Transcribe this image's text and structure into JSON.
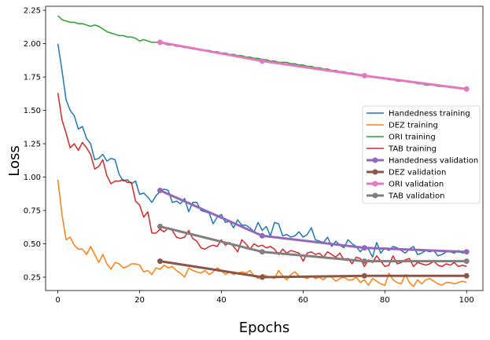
{
  "chart_data": {
    "type": "line",
    "title": "",
    "xlabel": "Epochs",
    "ylabel": "Loss",
    "xlim": [
      -3,
      104
    ],
    "ylim": [
      0.15,
      2.28
    ],
    "xticks": [
      0,
      20,
      40,
      60,
      80,
      100
    ],
    "yticks": [
      0.25,
      0.5,
      0.75,
      1.0,
      1.25,
      1.5,
      1.75,
      2.0,
      2.25
    ],
    "xtick_labels": [
      "0",
      "20",
      "40",
      "60",
      "80",
      "100"
    ],
    "ytick_labels": [
      "0.25",
      "0.50",
      "0.75",
      "1.00",
      "1.25",
      "1.50",
      "1.75",
      "2.00",
      "2.25"
    ],
    "grid": false,
    "legend_position": "center-right",
    "series": [
      {
        "name": "Handedness training",
        "color": "#1f77b4",
        "style": "line",
        "x": [
          0,
          1,
          2,
          3,
          4,
          5,
          6,
          7,
          8,
          9,
          10,
          11,
          12,
          13,
          14,
          15,
          16,
          17,
          18,
          19,
          20,
          21,
          22,
          23,
          24,
          25,
          26,
          27,
          28,
          29,
          30,
          31,
          32,
          33,
          34,
          35,
          36,
          37,
          38,
          39,
          40,
          41,
          42,
          43,
          44,
          45,
          46,
          47,
          48,
          49,
          50,
          51,
          52,
          53,
          54,
          55,
          56,
          57,
          58,
          59,
          60,
          61,
          62,
          63,
          64,
          65,
          66,
          67,
          68,
          69,
          70,
          71,
          72,
          73,
          74,
          75,
          76,
          77,
          78,
          79,
          80,
          81,
          82,
          83,
          84,
          85,
          86,
          87,
          88,
          89,
          90,
          91,
          92,
          93,
          94,
          95,
          96,
          97,
          98,
          99,
          100
        ],
        "y": [
          2.0,
          1.8,
          1.58,
          1.5,
          1.46,
          1.36,
          1.38,
          1.29,
          1.25,
          1.13,
          1.14,
          1.17,
          1.12,
          1.14,
          1.13,
          1.02,
          0.97,
          0.98,
          0.95,
          0.97,
          0.87,
          0.88,
          0.85,
          0.81,
          0.86,
          0.89,
          0.91,
          0.9,
          0.81,
          0.82,
          0.8,
          0.84,
          0.74,
          0.81,
          0.81,
          0.75,
          0.74,
          0.73,
          0.65,
          0.7,
          0.72,
          0.66,
          0.67,
          0.62,
          0.68,
          0.64,
          0.64,
          0.62,
          0.59,
          0.66,
          0.6,
          0.63,
          0.56,
          0.66,
          0.65,
          0.56,
          0.57,
          0.55,
          0.56,
          0.59,
          0.55,
          0.57,
          0.62,
          0.53,
          0.52,
          0.51,
          0.55,
          0.48,
          0.52,
          0.49,
          0.47,
          0.53,
          0.5,
          0.48,
          0.44,
          0.48,
          0.46,
          0.4,
          0.51,
          0.43,
          0.47,
          0.45,
          0.48,
          0.47,
          0.45,
          0.43,
          0.46,
          0.48,
          0.42,
          0.43,
          0.45,
          0.44,
          0.45,
          0.41,
          0.42,
          0.44,
          0.44,
          0.43,
          0.45,
          0.43,
          0.44
        ]
      },
      {
        "name": "DEZ training",
        "color": "#ff7f0e",
        "style": "line",
        "x": [
          0,
          1,
          2,
          3,
          4,
          5,
          6,
          7,
          8,
          9,
          10,
          11,
          12,
          13,
          14,
          15,
          16,
          17,
          18,
          19,
          20,
          21,
          22,
          23,
          24,
          25,
          26,
          27,
          28,
          29,
          30,
          31,
          32,
          33,
          34,
          35,
          36,
          37,
          38,
          39,
          40,
          41,
          42,
          43,
          44,
          45,
          46,
          47,
          48,
          49,
          50,
          51,
          52,
          53,
          54,
          55,
          56,
          57,
          58,
          59,
          60,
          61,
          62,
          63,
          64,
          65,
          66,
          67,
          68,
          69,
          70,
          71,
          72,
          73,
          74,
          75,
          76,
          77,
          78,
          79,
          80,
          81,
          82,
          83,
          84,
          85,
          86,
          87,
          88,
          89,
          90,
          91,
          92,
          93,
          94,
          95,
          96,
          97,
          98,
          99,
          100
        ],
        "y": [
          0.98,
          0.72,
          0.53,
          0.55,
          0.49,
          0.46,
          0.46,
          0.42,
          0.48,
          0.42,
          0.36,
          0.42,
          0.35,
          0.31,
          0.36,
          0.35,
          0.32,
          0.33,
          0.35,
          0.35,
          0.34,
          0.29,
          0.3,
          0.27,
          0.32,
          0.31,
          0.34,
          0.32,
          0.33,
          0.3,
          0.28,
          0.25,
          0.32,
          0.3,
          0.29,
          0.28,
          0.3,
          0.27,
          0.29,
          0.32,
          0.3,
          0.27,
          0.29,
          0.27,
          0.28,
          0.29,
          0.28,
          0.3,
          0.26,
          0.24,
          0.27,
          0.26,
          0.25,
          0.24,
          0.3,
          0.26,
          0.23,
          0.27,
          0.29,
          0.26,
          0.25,
          0.24,
          0.26,
          0.24,
          0.25,
          0.23,
          0.26,
          0.25,
          0.22,
          0.24,
          0.25,
          0.23,
          0.23,
          0.25,
          0.21,
          0.23,
          0.19,
          0.24,
          0.22,
          0.2,
          0.19,
          0.28,
          0.23,
          0.21,
          0.2,
          0.27,
          0.21,
          0.18,
          0.23,
          0.2,
          0.23,
          0.24,
          0.22,
          0.2,
          0.19,
          0.21,
          0.21,
          0.2,
          0.21,
          0.22,
          0.21
        ]
      },
      {
        "name": "ORI training",
        "color": "#2ca02c",
        "style": "line",
        "x": [
          0,
          1,
          2,
          3,
          4,
          5,
          6,
          7,
          8,
          9,
          10,
          11,
          12,
          13,
          14,
          15,
          16,
          17,
          18,
          19,
          20,
          21,
          22,
          23,
          24,
          25,
          26,
          27,
          28,
          29,
          30,
          31,
          32,
          33,
          34,
          35,
          36,
          37,
          38,
          39,
          40,
          41,
          42,
          43,
          44,
          45,
          46,
          47,
          48,
          49,
          50,
          51,
          52,
          53,
          54,
          55,
          56,
          57,
          58,
          59,
          60,
          61,
          62,
          63,
          64,
          65,
          66,
          67,
          68,
          69,
          70,
          71,
          72,
          73,
          74,
          75,
          76,
          77,
          78,
          79,
          80,
          81,
          82,
          83,
          84,
          85,
          86,
          87,
          88,
          89,
          90,
          91,
          92,
          93,
          94,
          95,
          96,
          97,
          98,
          99,
          100
        ],
        "y": [
          2.21,
          2.18,
          2.17,
          2.16,
          2.16,
          2.15,
          2.15,
          2.14,
          2.13,
          2.14,
          2.13,
          2.11,
          2.09,
          2.08,
          2.07,
          2.06,
          2.06,
          2.05,
          2.05,
          2.04,
          2.02,
          2.03,
          2.02,
          2.01,
          2.01,
          2.01,
          2.0,
          1.99,
          1.99,
          1.98,
          1.98,
          1.97,
          1.97,
          1.96,
          1.96,
          1.95,
          1.95,
          1.95,
          1.94,
          1.94,
          1.93,
          1.93,
          1.92,
          1.92,
          1.91,
          1.91,
          1.9,
          1.9,
          1.89,
          1.89,
          1.88,
          1.88,
          1.87,
          1.87,
          1.86,
          1.86,
          1.86,
          1.85,
          1.85,
          1.84,
          1.84,
          1.83,
          1.83,
          1.82,
          1.82,
          1.81,
          1.81,
          1.8,
          1.8,
          1.79,
          1.79,
          1.78,
          1.78,
          1.77,
          1.77,
          1.76,
          1.76,
          1.75,
          1.75,
          1.74,
          1.74,
          1.73,
          1.73,
          1.72,
          1.72,
          1.72,
          1.71,
          1.71,
          1.7,
          1.7,
          1.69,
          1.69,
          1.69,
          1.68,
          1.68,
          1.68,
          1.67,
          1.67,
          1.67,
          1.66,
          1.66
        ]
      },
      {
        "name": "TAB training",
        "color": "#d62728",
        "style": "line",
        "x": [
          0,
          1,
          2,
          3,
          4,
          5,
          6,
          7,
          8,
          9,
          10,
          11,
          12,
          13,
          14,
          15,
          16,
          17,
          18,
          19,
          20,
          21,
          22,
          23,
          24,
          25,
          26,
          27,
          28,
          29,
          30,
          31,
          32,
          33,
          34,
          35,
          36,
          37,
          38,
          39,
          40,
          41,
          42,
          43,
          44,
          45,
          46,
          47,
          48,
          49,
          50,
          51,
          52,
          53,
          54,
          55,
          56,
          57,
          58,
          59,
          60,
          61,
          62,
          63,
          64,
          65,
          66,
          67,
          68,
          69,
          70,
          71,
          72,
          73,
          74,
          75,
          76,
          77,
          78,
          79,
          80,
          81,
          82,
          83,
          84,
          85,
          86,
          87,
          88,
          89,
          90,
          91,
          92,
          93,
          94,
          95,
          96,
          97,
          98,
          99,
          100
        ],
        "y": [
          1.63,
          1.43,
          1.33,
          1.22,
          1.25,
          1.2,
          1.26,
          1.22,
          1.17,
          1.06,
          1.08,
          1.13,
          1.01,
          0.95,
          0.97,
          0.97,
          0.98,
          0.96,
          0.96,
          0.82,
          0.79,
          0.7,
          0.74,
          0.58,
          0.58,
          0.61,
          0.59,
          0.62,
          0.6,
          0.55,
          0.54,
          0.55,
          0.6,
          0.54,
          0.52,
          0.47,
          0.46,
          0.48,
          0.49,
          0.48,
          0.53,
          0.49,
          0.51,
          0.48,
          0.44,
          0.53,
          0.5,
          0.46,
          0.5,
          0.48,
          0.49,
          0.47,
          0.48,
          0.46,
          0.42,
          0.46,
          0.43,
          0.45,
          0.44,
          0.43,
          0.37,
          0.43,
          0.44,
          0.42,
          0.43,
          0.4,
          0.44,
          0.42,
          0.4,
          0.43,
          0.38,
          0.39,
          0.35,
          0.4,
          0.39,
          0.33,
          0.38,
          0.36,
          0.41,
          0.37,
          0.33,
          0.34,
          0.41,
          0.35,
          0.36,
          0.38,
          0.39,
          0.33,
          0.36,
          0.35,
          0.34,
          0.35,
          0.37,
          0.34,
          0.33,
          0.35,
          0.34,
          0.36,
          0.33,
          0.34,
          0.33
        ]
      },
      {
        "name": "Handedness validation",
        "color": "#9467bd",
        "style": "line-marker",
        "x": [
          25,
          50,
          75,
          100
        ],
        "y": [
          0.9,
          0.56,
          0.47,
          0.44
        ]
      },
      {
        "name": "DEZ validation",
        "color": "#8c564b",
        "style": "line-marker",
        "x": [
          25,
          50,
          75,
          100
        ],
        "y": [
          0.37,
          0.25,
          0.26,
          0.26
        ]
      },
      {
        "name": "ORI validation",
        "color": "#e377c2",
        "style": "line-marker",
        "x": [
          25,
          50,
          75,
          100
        ],
        "y": [
          2.01,
          1.87,
          1.76,
          1.66
        ]
      },
      {
        "name": "TAB validation",
        "color": "#7f7f7f",
        "style": "line-marker",
        "x": [
          25,
          50,
          75,
          100
        ],
        "y": [
          0.63,
          0.44,
          0.37,
          0.37
        ]
      }
    ]
  }
}
